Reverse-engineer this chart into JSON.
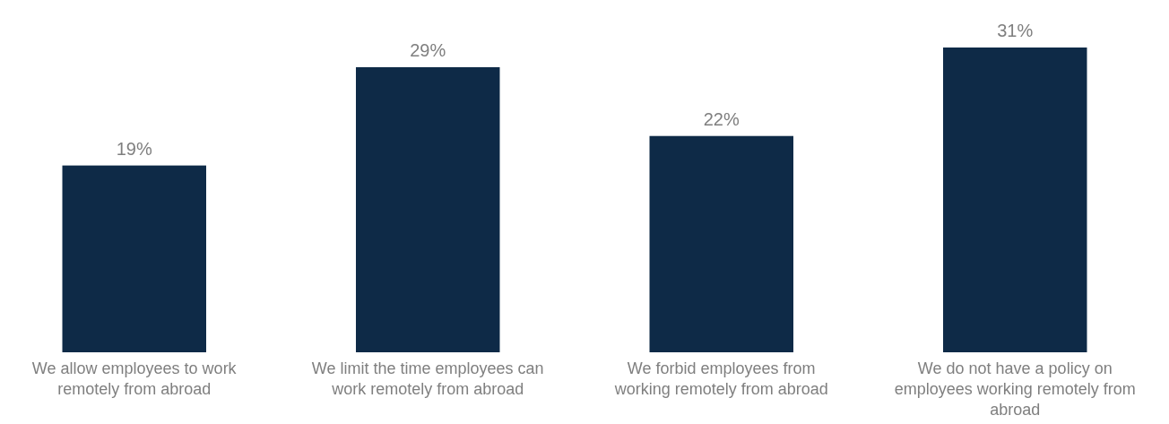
{
  "chart_data": {
    "type": "bar",
    "categories": [
      "We allow employees to work remotely from abroad",
      "We limit the time employees can work remotely from abroad",
      "We forbid employees from working remotely from abroad",
      "We do not have a policy on employees working remotely from abroad"
    ],
    "values": [
      19,
      29,
      22,
      31
    ],
    "value_labels": [
      "19%",
      "29%",
      "22%",
      "31%"
    ],
    "color": "#0e2a47"
  }
}
